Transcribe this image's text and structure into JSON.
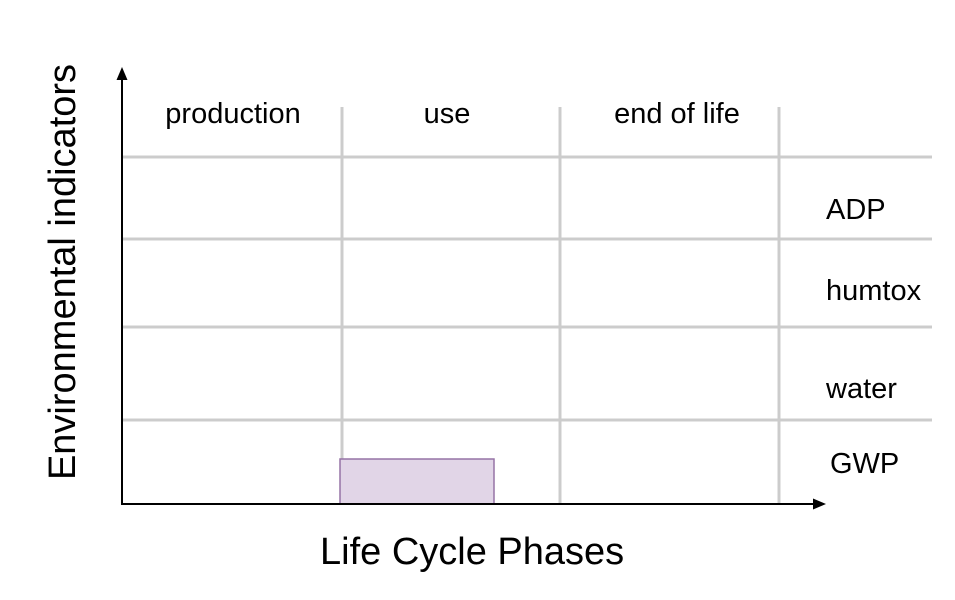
{
  "axes": {
    "y_title": "Environmental indicators",
    "x_title": "Life Cycle Phases"
  },
  "phases": [
    "production",
    "use",
    "end of life"
  ],
  "indicators": [
    "ADP",
    "humtox",
    "water",
    "GWP"
  ],
  "highlight": {
    "phase": "use",
    "indicator": "GWP",
    "fill": "#e1d5e7",
    "stroke": "#9673a6"
  },
  "colors": {
    "grid": "#cccccc",
    "axis": "#000000"
  }
}
